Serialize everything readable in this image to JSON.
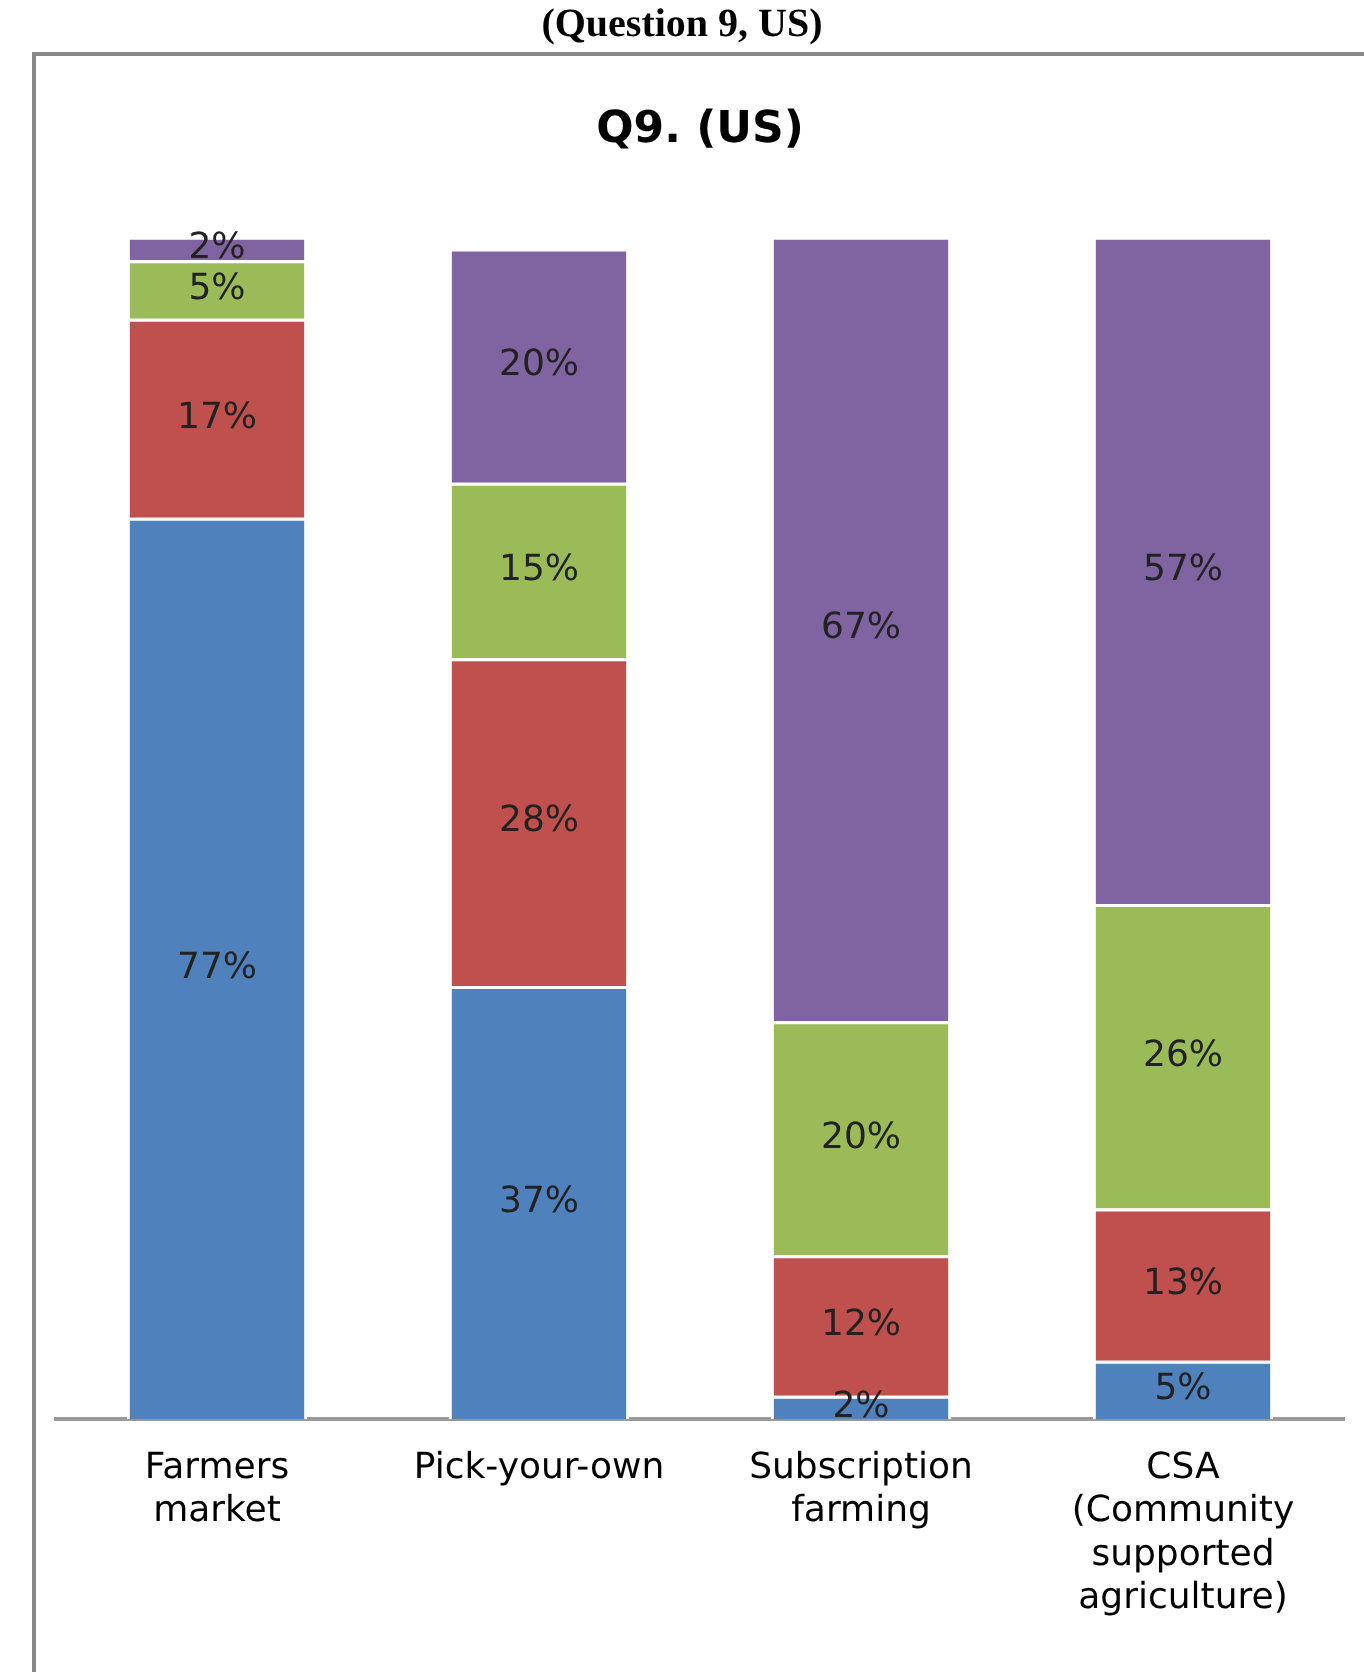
{
  "chart_data": {
    "type": "bar",
    "title": "Q9. (US)",
    "annotations": [
      "(Question 9, US)"
    ],
    "categories": [
      "Farmers market",
      "Pick-your-own",
      "Subscription farming",
      "CSA (Community supported agriculture)"
    ],
    "stacked": true,
    "ylim": [
      0,
      101
    ],
    "tick_labels": "x",
    "grid": false,
    "legend": false,
    "series": [
      {
        "color": "#4f81bd",
        "values": [
          77,
          37,
          2,
          5
        ],
        "value_labels": [
          "77%",
          "37%",
          "2%",
          "5%"
        ]
      },
      {
        "color": "#c0504d",
        "values": [
          17,
          28,
          12,
          13
        ],
        "value_labels": [
          "17%",
          "28%",
          "12%",
          "13%"
        ]
      },
      {
        "color": "#9bbb59",
        "values": [
          5,
          15,
          20,
          26
        ],
        "value_labels": [
          "5%",
          "15%",
          "20%",
          "26%"
        ]
      },
      {
        "color": "#8064a2",
        "values": [
          2,
          20,
          67,
          57
        ],
        "value_labels": [
          "2%",
          "20%",
          "67%",
          "57%"
        ]
      }
    ]
  }
}
